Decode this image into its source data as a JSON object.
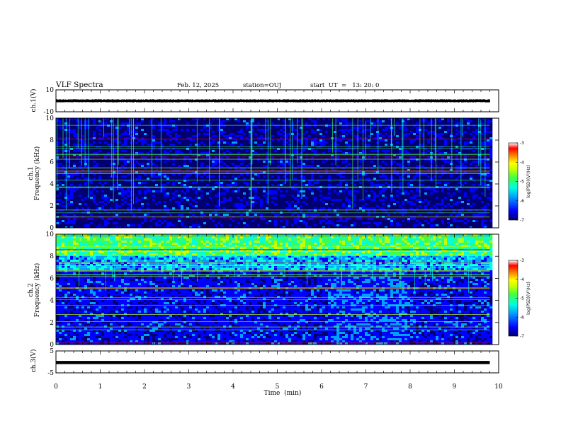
{
  "header": {
    "title": "VLF Spectra",
    "date": "Feb. 12, 2025",
    "station": "station=OUJ",
    "start": "start  UT  =   13: 20: 0"
  },
  "colors": {
    "spectrum": [
      "#00006e",
      "#0000ff",
      "#00a0ff",
      "#00ffe0",
      "#40ff40",
      "#c8ff00",
      "#ffff00",
      "#ff8000",
      "#ff0000",
      "#ffffff"
    ]
  },
  "chart_data": [
    {
      "type": "line",
      "panel": "ch1-waveform",
      "ylabel": "ch.1(V)",
      "ylim": [
        -10,
        10
      ],
      "yticks": [
        "10",
        "-10"
      ],
      "xlim": [
        0,
        10
      ],
      "x": [
        0,
        9.8
      ],
      "band": [
        -1.5,
        1.5
      ]
    },
    {
      "type": "heatmap",
      "panel": "ch1-spectrogram",
      "ylabel": "ch.1 Frequency (kHz)",
      "ylim": [
        0,
        10
      ],
      "yticks": [
        "0",
        "2",
        "4",
        "6",
        "8",
        "10"
      ],
      "xlim": [
        0,
        10
      ],
      "data_end": 9.8,
      "colorbar": {
        "label": "log(PSD)(V²/Hz)",
        "range": [
          -7,
          -3
        ],
        "ticks": [
          "-3",
          "-4",
          "-5",
          "-6",
          "-7"
        ]
      }
    },
    {
      "type": "heatmap",
      "panel": "ch2-spectrogram",
      "ylabel": "ch.2 Frequency (kHz)",
      "ylim": [
        0,
        10
      ],
      "yticks": [
        "0",
        "2",
        "4",
        "6",
        "8",
        "10"
      ],
      "xlim": [
        0,
        10
      ],
      "data_end": 9.8,
      "colorbar": {
        "label": "log(PSD)(V²/Hz)",
        "range": [
          -7,
          -3
        ],
        "ticks": [
          "-3",
          "-4",
          "-5",
          "-6",
          "-7"
        ]
      }
    },
    {
      "type": "line",
      "panel": "ch3-waveform",
      "ylabel": "ch.3(V)",
      "ylim": [
        -5,
        5
      ],
      "yticks": [
        "5",
        "-5"
      ],
      "xlim": [
        0,
        10
      ],
      "x": [
        0,
        9.8
      ],
      "band": [
        -0.3,
        -0.3
      ]
    }
  ],
  "xaxis": {
    "label": "Time  (min)",
    "ticks": [
      "0",
      "1",
      "2",
      "3",
      "4",
      "5",
      "6",
      "7",
      "8",
      "9",
      "10"
    ]
  }
}
